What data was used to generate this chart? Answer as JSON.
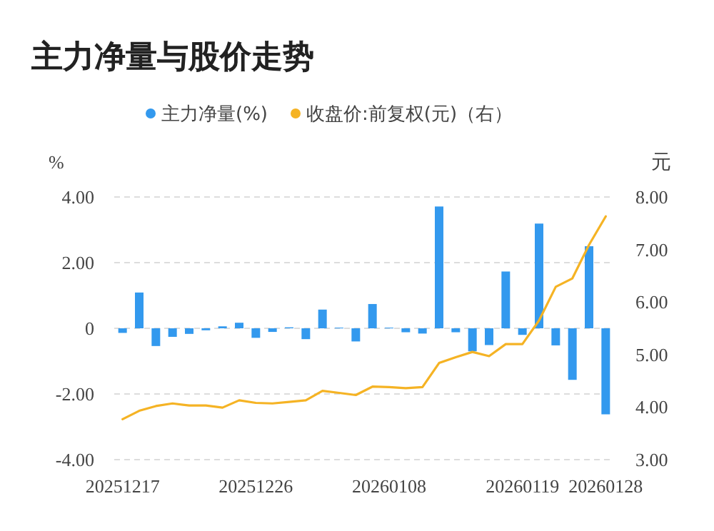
{
  "chart_data": {
    "type": "bar",
    "title": "主力净量与股价走势",
    "categories": [
      "20251217",
      null,
      null,
      null,
      null,
      null,
      null,
      null,
      "20251226",
      null,
      null,
      null,
      null,
      null,
      null,
      null,
      "20260108",
      null,
      null,
      null,
      null,
      null,
      null,
      null,
      "20260119",
      null,
      null,
      null,
      null,
      "20260128"
    ],
    "series": [
      {
        "name": "主力净量(%)",
        "color": "#3399ee",
        "values": [
          -0.14,
          1.09,
          -0.54,
          -0.26,
          -0.17,
          -0.06,
          0.06,
          0.17,
          -0.29,
          -0.11,
          0.03,
          -0.33,
          0.57,
          0.02,
          -0.4,
          0.74,
          0.02,
          -0.12,
          -0.16,
          3.71,
          -0.12,
          -0.7,
          -0.51,
          1.73,
          -0.2,
          3.19,
          -0.52,
          -1.57,
          2.5,
          -2.62
        ]
      },
      {
        "name": "收盘价:前复权(元)（右）",
        "type": "line",
        "axis": "y2",
        "color": "#f5b324",
        "values": [
          3.77,
          3.93,
          4.02,
          4.07,
          4.03,
          4.03,
          3.99,
          4.13,
          4.08,
          4.07,
          4.1,
          4.13,
          4.31,
          4.27,
          4.23,
          4.39,
          4.38,
          4.36,
          4.38,
          4.84,
          4.95,
          5.05,
          4.97,
          5.2,
          5.2,
          5.65,
          6.29,
          6.45,
          7.09,
          7.63
        ]
      }
    ],
    "ylabel": "%",
    "y2label": "元",
    "ylim": [
      -4,
      4
    ],
    "yticks": [
      {
        "value": -4,
        "label": "-4.00"
      },
      {
        "value": -2,
        "label": "-2.00"
      },
      0,
      {
        "value": 2,
        "label": "2.00"
      },
      {
        "value": 4,
        "label": "4.00"
      }
    ],
    "y2lim": [
      3,
      8
    ],
    "y2ticks": [
      {
        "value": 3,
        "label": "3.00"
      },
      {
        "value": 4,
        "label": "4.00"
      },
      {
        "value": 5,
        "label": "5.00"
      },
      {
        "value": 6,
        "label": "6.00"
      },
      {
        "value": 7,
        "label": "7.00"
      },
      {
        "value": 8,
        "label": "8.00"
      }
    ],
    "grid": "y",
    "legend": "top"
  }
}
